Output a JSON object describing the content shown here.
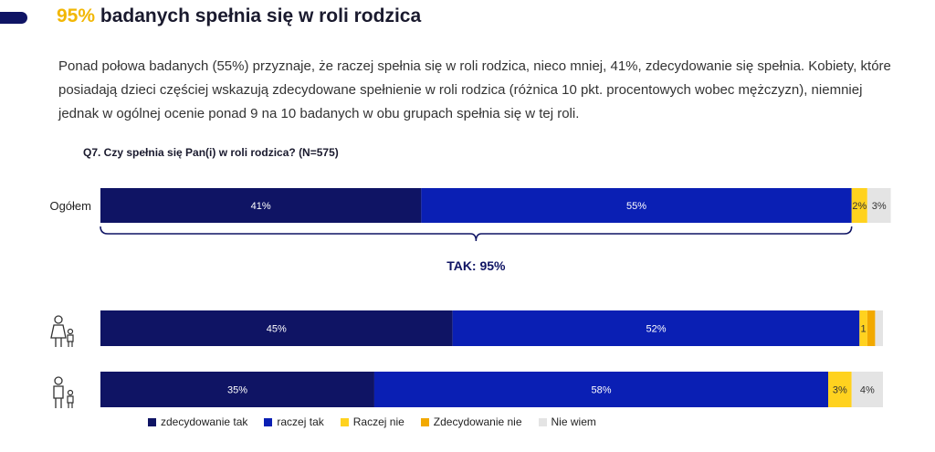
{
  "title_highlight": "95%",
  "title_rest": "badanych spełnia się w roli rodzica",
  "intro_text": "Ponad połowa badanych (55%) przyznaje, że raczej spełnia się w roli rodzica, nieco mniej, 41%, zdecydowanie się spełnia. Kobiety, które posiadają dzieci częściej wskazują zdecydowane spełnienie w roli rodzica (różnica 10 pkt. procentowych wobec mężczyzn), niemniej jednak w ogólnej ocenie ponad 9 na 10 badanych w obu grupach spełnia się w tej roli.",
  "question": "Q7. Czy spełnia się Pan(i) w roli rodzica? (N=575)",
  "chart_data": {
    "type": "bar",
    "orientation": "horizontal-stacked-100",
    "categories": [
      "Ogółem",
      "kobiety",
      "mężczyźni"
    ],
    "category_labels_shown": [
      "Ogółem",
      "",
      ""
    ],
    "category_icons": [
      "",
      "woman-with-child-icon",
      "man-with-child-icon"
    ],
    "series": [
      {
        "name": "zdecydowanie tak",
        "values": [
          41,
          45,
          35
        ],
        "labels": [
          "41%",
          "45%",
          "35%"
        ],
        "color": "#0f1464"
      },
      {
        "name": "raczej tak",
        "values": [
          55,
          52,
          58
        ],
        "labels": [
          "55%",
          "52%",
          "58%"
        ],
        "color": "#0a1fb4"
      },
      {
        "name": "Raczej nie",
        "values": [
          2,
          1,
          3
        ],
        "labels": [
          "2%",
          "1",
          "3%"
        ],
        "color": "#ffd21f"
      },
      {
        "name": "Zdecydowanie nie",
        "values": [
          0,
          1,
          0
        ],
        "labels": [
          "",
          "",
          ""
        ],
        "color": "#f2a900"
      },
      {
        "name": "Nie wiem",
        "values": [
          3,
          1,
          4
        ],
        "labels": [
          "3%",
          "",
          "4%"
        ],
        "color": "#e4e4e4"
      }
    ],
    "bracket_label": "TAK: 95%",
    "xlim": [
      0,
      100
    ],
    "legend_position": "bottom"
  }
}
